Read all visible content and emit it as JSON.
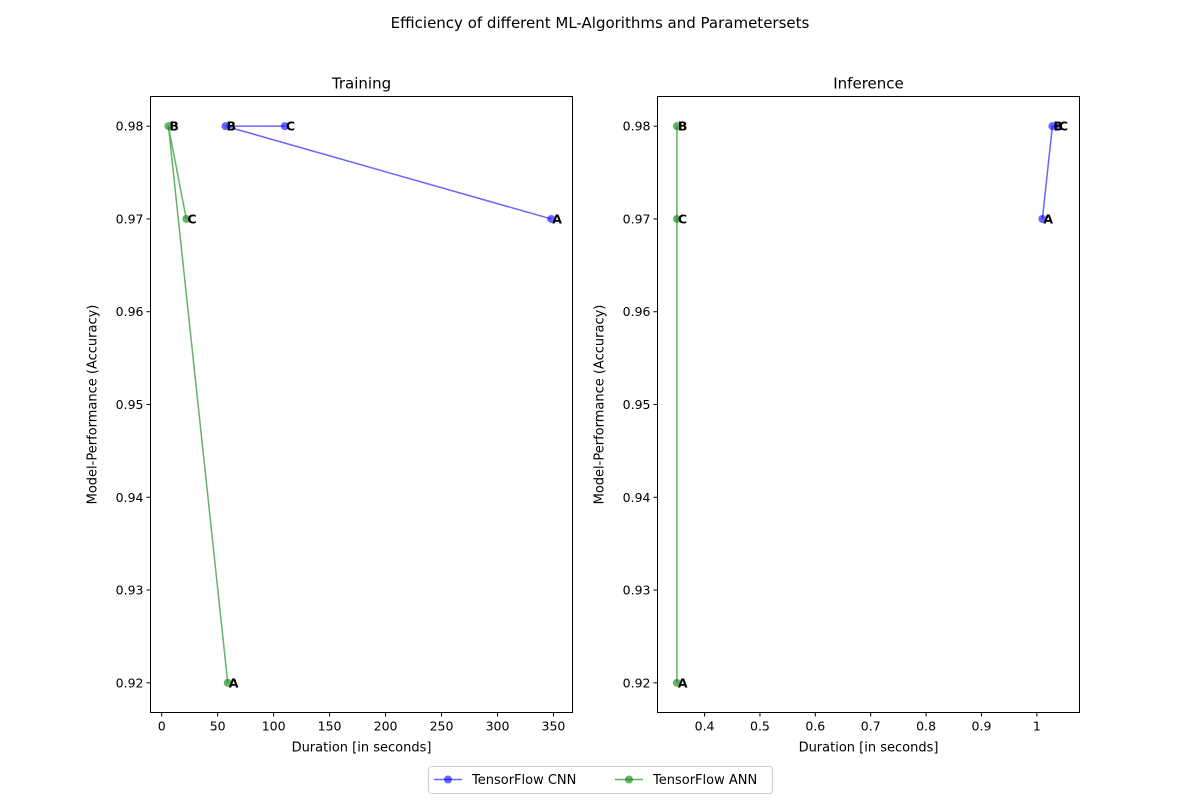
{
  "figure": {
    "suptitle": "Efficiency of different ML-Algorithms and Parametersets"
  },
  "legend": {
    "placement": "bottom-center",
    "entries": [
      {
        "name": "TensorFlow CNN",
        "color": "#0000ff"
      },
      {
        "name": "TensorFlow ANN",
        "color": "#008000"
      }
    ]
  },
  "chart_data": [
    {
      "type": "line",
      "title": "Training",
      "xlabel": "Duration [in seconds]",
      "ylabel": "Model-Performance (Accuracy)",
      "xlim": [
        -10,
        367
      ],
      "ylim": [
        0.9168,
        0.9832
      ],
      "xticks": [
        0,
        50,
        100,
        150,
        200,
        250,
        300,
        350
      ],
      "yticks": [
        0.92,
        0.93,
        0.94,
        0.95,
        0.96,
        0.97,
        0.98
      ],
      "grid": false,
      "series": [
        {
          "name": "TensorFlow CNN",
          "color": "#0000ff",
          "points": [
            {
              "x": 348,
              "y": 0.97,
              "label": "A"
            },
            {
              "x": 57,
              "y": 0.98,
              "label": "B"
            },
            {
              "x": 110,
              "y": 0.98,
              "label": "C"
            }
          ]
        },
        {
          "name": "TensorFlow ANN",
          "color": "#008000",
          "points": [
            {
              "x": 59,
              "y": 0.92,
              "label": "A"
            },
            {
              "x": 6,
              "y": 0.98,
              "label": "B"
            },
            {
              "x": 22,
              "y": 0.97,
              "label": "C"
            }
          ]
        }
      ]
    },
    {
      "type": "line",
      "title": "Inference",
      "xlabel": "Duration [in seconds]",
      "ylabel": "Model-Performance (Accuracy)",
      "xlim": [
        0.315,
        1.077
      ],
      "ylim": [
        0.9168,
        0.9832
      ],
      "xticks": [
        0.4,
        0.5,
        0.6,
        0.7,
        0.8,
        0.9,
        1.0
      ],
      "yticks": [
        0.92,
        0.93,
        0.94,
        0.95,
        0.96,
        0.97,
        0.98
      ],
      "grid": false,
      "series": [
        {
          "name": "TensorFlow CNN",
          "color": "#0000ff",
          "points": [
            {
              "x": 1.01,
              "y": 0.97,
              "label": "A"
            },
            {
              "x": 1.028,
              "y": 0.98,
              "label": "B"
            },
            {
              "x": 1.038,
              "y": 0.98,
              "label": "C"
            }
          ]
        },
        {
          "name": "TensorFlow ANN",
          "color": "#008000",
          "points": [
            {
              "x": 0.35,
              "y": 0.92,
              "label": "A"
            },
            {
              "x": 0.35,
              "y": 0.98,
              "label": "B"
            },
            {
              "x": 0.35,
              "y": 0.97,
              "label": "C"
            }
          ]
        }
      ]
    }
  ]
}
